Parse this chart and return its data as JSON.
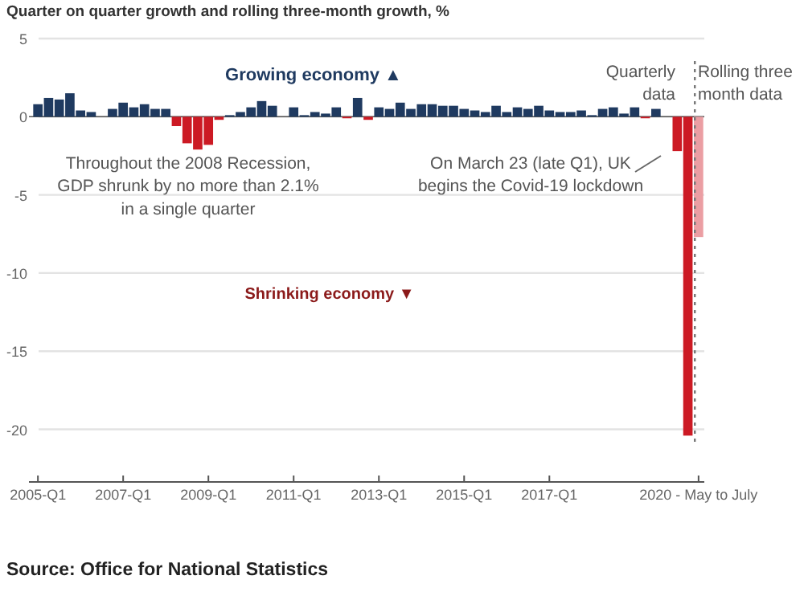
{
  "chart_data": {
    "type": "bar",
    "title": "Quarter on quarter growth and rolling three-month growth, %",
    "categories": [
      "2005-Q1",
      null,
      null,
      null,
      null,
      null,
      null,
      null,
      "2007-Q1",
      null,
      null,
      null,
      null,
      null,
      null,
      null,
      "2009-Q1",
      null,
      null,
      null,
      null,
      null,
      null,
      null,
      "2011-Q1",
      null,
      null,
      null,
      null,
      null,
      null,
      null,
      "2013-Q1",
      null,
      null,
      null,
      null,
      null,
      null,
      null,
      "2015-Q1",
      null,
      null,
      null,
      null,
      null,
      null,
      null,
      "2017-Q1",
      null,
      null,
      null,
      null,
      null,
      null,
      null,
      null,
      null,
      null,
      null,
      null,
      null,
      "2020 - May to July"
    ],
    "values": [
      0.8,
      1.2,
      1.1,
      1.5,
      0.4,
      0.3,
      0.0,
      0.5,
      0.9,
      0.6,
      0.8,
      0.5,
      0.5,
      -0.6,
      -1.7,
      -2.1,
      -1.8,
      -0.2,
      0.1,
      0.3,
      0.6,
      1.0,
      0.7,
      0.0,
      0.6,
      0.1,
      0.3,
      0.2,
      0.6,
      -0.1,
      1.2,
      -0.2,
      0.6,
      0.5,
      0.9,
      0.5,
      0.8,
      0.8,
      0.7,
      0.7,
      0.5,
      0.4,
      0.3,
      0.7,
      0.3,
      0.6,
      0.5,
      0.7,
      0.4,
      0.3,
      0.3,
      0.4,
      0.1,
      0.5,
      0.6,
      0.2,
      0.6,
      -0.1,
      0.5,
      0.0,
      -2.2,
      -20.4,
      -7.7
    ],
    "colors": [
      "#1f3a60",
      "#1f3a60",
      "#1f3a60",
      "#1f3a60",
      "#1f3a60",
      "#1f3a60",
      "#1f3a60",
      "#1f3a60",
      "#1f3a60",
      "#1f3a60",
      "#1f3a60",
      "#1f3a60",
      "#1f3a60",
      "#cc1a24",
      "#cc1a24",
      "#cc1a24",
      "#cc1a24",
      "#cc1a24",
      "#1f3a60",
      "#1f3a60",
      "#1f3a60",
      "#1f3a60",
      "#1f3a60",
      "#1f3a60",
      "#1f3a60",
      "#1f3a60",
      "#1f3a60",
      "#1f3a60",
      "#1f3a60",
      "#cc1a24",
      "#1f3a60",
      "#cc1a24",
      "#1f3a60",
      "#1f3a60",
      "#1f3a60",
      "#1f3a60",
      "#1f3a60",
      "#1f3a60",
      "#1f3a60",
      "#1f3a60",
      "#1f3a60",
      "#1f3a60",
      "#1f3a60",
      "#1f3a60",
      "#1f3a60",
      "#1f3a60",
      "#1f3a60",
      "#1f3a60",
      "#1f3a60",
      "#1f3a60",
      "#1f3a60",
      "#1f3a60",
      "#1f3a60",
      "#1f3a60",
      "#1f3a60",
      "#1f3a60",
      "#1f3a60",
      "#cc1a24",
      "#1f3a60",
      "#1f3a60",
      "#cc1a24",
      "#cc1a24",
      "#eb9ea3"
    ],
    "ylim": [
      -21,
      5
    ],
    "yticks": [
      5,
      0,
      -5,
      -10,
      -15,
      -20
    ],
    "grid": "y",
    "annotations": [
      "Growing economy ▲",
      "Shrinking economy ▼",
      "Throughout the 2008 Recession,\nGDP shrunk by no more than 2.1%\nin a single quarter",
      "On March 23 (late Q1), UK\nbegins the Covid-19 lockdown",
      "Quarterly\ndata",
      "Rolling three\nmonth data",
      "Source: Office for National Statistics"
    ]
  }
}
